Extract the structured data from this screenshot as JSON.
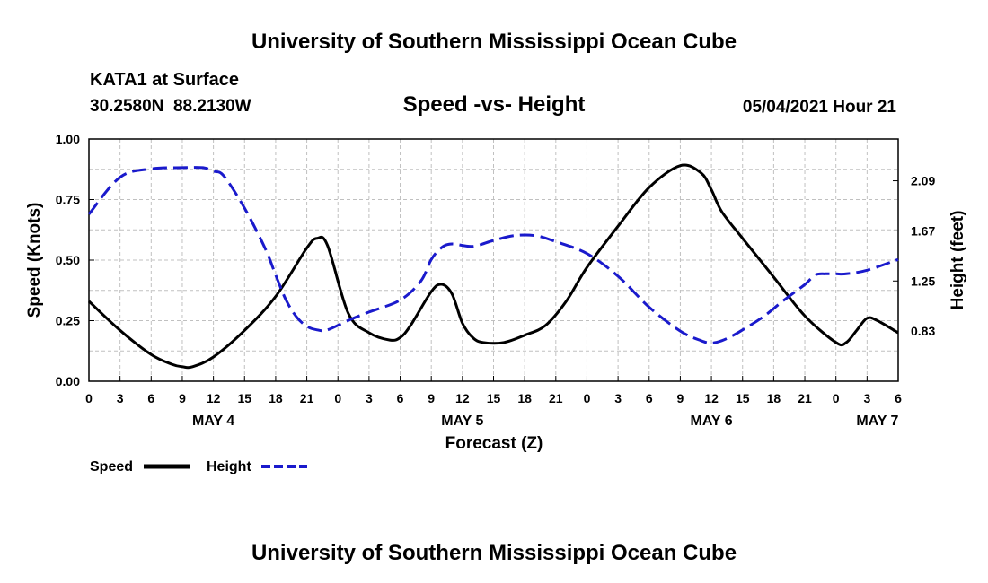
{
  "page": {
    "title_top": "University of Southern Mississippi Ocean Cube",
    "title_bottom": "University of Southern Mississippi Ocean Cube",
    "station": "KATA1 at Surface",
    "coords": "30.2580N  88.2130W",
    "datetime": "05/04/2021 Hour 21"
  },
  "colors": {
    "speed": "#000000",
    "height": "#1a1acc",
    "grid": "#c0c0c0"
  },
  "chart_data": {
    "type": "line",
    "title": "Speed -vs- Height",
    "xlabel": "Forecast (Z)",
    "ylabel_left": "Speed (Knots)",
    "ylabel_right": "Height (feet)",
    "x_ticks": [
      "0",
      "3",
      "6",
      "9",
      "12",
      "15",
      "18",
      "21",
      "0",
      "3",
      "6",
      "9",
      "12",
      "15",
      "18",
      "21",
      "0",
      "3",
      "6",
      "9",
      "12",
      "15",
      "18",
      "21",
      "0",
      "3",
      "6"
    ],
    "x_range_hours": [
      0,
      78
    ],
    "day_labels": [
      {
        "label": "MAY 4",
        "hour": 12
      },
      {
        "label": "MAY 5",
        "hour": 36
      },
      {
        "label": "MAY 6",
        "hour": 60
      },
      {
        "label": "MAY 7",
        "hour": 76
      }
    ],
    "y_left": {
      "range": [
        0,
        1
      ],
      "ticks": [
        "0.00",
        "0.25",
        "0.50",
        "0.75",
        "1.00"
      ],
      "tick_values": [
        0,
        0.25,
        0.5,
        0.75,
        1.0
      ]
    },
    "y_right": {
      "range": [
        0.41,
        2.44
      ],
      "ticks": [
        "0.83",
        "1.25",
        "1.67",
        "2.09"
      ],
      "tick_values": [
        0.83,
        1.25,
        1.67,
        2.09
      ]
    },
    "legend": {
      "speed_label": "Speed",
      "height_label": "Height",
      "placement": "bottom-left"
    },
    "series": [
      {
        "name": "Speed",
        "axis": "left",
        "style": "solid",
        "x": [
          0,
          3,
          6,
          8,
          9,
          10,
          12,
          15,
          18,
          21,
          22,
          23,
          25,
          27,
          29,
          30,
          31,
          33,
          34,
          35,
          36,
          37,
          38,
          40,
          42,
          44,
          46,
          48,
          51,
          54,
          57,
          59,
          60,
          61,
          63,
          66,
          69,
          72,
          73,
          74,
          75,
          76,
          78
        ],
        "y": [
          0.33,
          0.21,
          0.11,
          0.07,
          0.06,
          0.06,
          0.1,
          0.21,
          0.35,
          0.55,
          0.59,
          0.56,
          0.28,
          0.2,
          0.17,
          0.18,
          0.23,
          0.37,
          0.4,
          0.36,
          0.24,
          0.18,
          0.16,
          0.16,
          0.19,
          0.23,
          0.33,
          0.47,
          0.64,
          0.8,
          0.89,
          0.86,
          0.79,
          0.7,
          0.59,
          0.43,
          0.27,
          0.16,
          0.16,
          0.21,
          0.26,
          0.25,
          0.2
        ]
      },
      {
        "name": "Height",
        "axis": "right",
        "style": "dashed",
        "x": [
          0,
          3,
          6,
          9,
          11,
          12,
          13,
          15,
          17,
          18,
          19,
          20,
          21,
          22,
          23,
          25,
          27,
          30,
          32,
          33,
          34,
          35,
          37,
          39,
          41,
          43,
          45,
          48,
          51,
          54,
          57,
          59,
          60,
          61,
          62,
          63,
          65,
          67,
          69,
          70,
          71,
          72,
          73,
          75,
          78
        ],
        "y": [
          1.81,
          2.12,
          2.19,
          2.2,
          2.2,
          2.17,
          2.13,
          1.86,
          1.52,
          1.3,
          1.09,
          0.95,
          0.87,
          0.84,
          0.84,
          0.92,
          0.99,
          1.09,
          1.25,
          1.43,
          1.53,
          1.56,
          1.54,
          1.59,
          1.63,
          1.63,
          1.58,
          1.48,
          1.29,
          1.03,
          0.83,
          0.75,
          0.73,
          0.75,
          0.79,
          0.84,
          0.95,
          1.09,
          1.22,
          1.3,
          1.31,
          1.31,
          1.31,
          1.34,
          1.43
        ]
      }
    ]
  }
}
